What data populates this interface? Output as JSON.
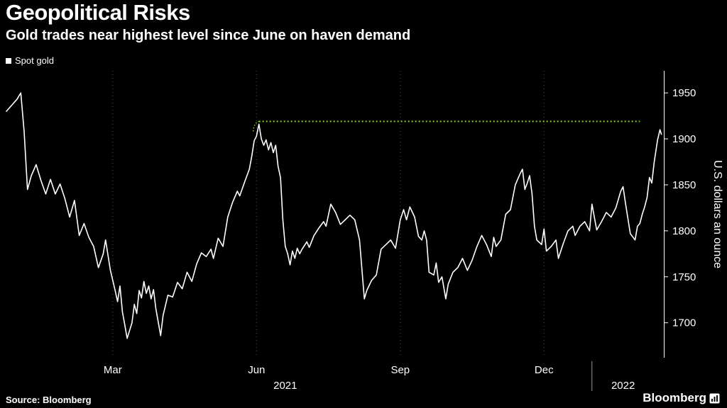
{
  "header": {
    "title": "Geopolitical Risks",
    "subtitle": "Gold trades near highest level since June on haven demand"
  },
  "legend": {
    "label": "Spot gold",
    "marker_color": "#ffffff"
  },
  "footer": {
    "source": "Source: Bloomberg",
    "brand": "Bloomberg"
  },
  "colors": {
    "background": "#000000",
    "line": "#ffffff",
    "accent_green": "#8bd125",
    "gridline": "#4d4d4d"
  },
  "chart_data": {
    "type": "line",
    "title": "Geopolitical Risks",
    "subtitle": "Gold trades near highest level since June on haven demand",
    "legend_position": "top-left",
    "grid": "vertical-dotted",
    "x_axis": {
      "unit": "months since Jan 2021",
      "range": [
        -0.25,
        13.5
      ],
      "gridlines": [
        {
          "pos": 2,
          "label": "Mar"
        },
        {
          "pos": 5,
          "label": "Jun"
        },
        {
          "pos": 8,
          "label": "Sep"
        },
        {
          "pos": 11,
          "label": "Dec"
        }
      ],
      "year_labels": [
        {
          "pos": 5.6,
          "label": "2021"
        },
        {
          "pos": 12.65,
          "label": "2022"
        }
      ],
      "year_divider_pos": 12
    },
    "y_axis": {
      "label": "U.S. dollars an ounce",
      "range": [
        1662,
        1974
      ],
      "ticks": [
        1700,
        1750,
        1800,
        1850,
        1900,
        1950
      ],
      "side": "right"
    },
    "annotation": {
      "type": "dotted_horizontal_line",
      "description": "highest level since June reference line",
      "color": "#8bd125",
      "value": 1919,
      "x_start": 5.05,
      "x_end": 13.0
    },
    "series": [
      {
        "name": "Spot gold",
        "color": "#ffffff",
        "points": [
          [
            -0.22,
            1930
          ],
          [
            0.0,
            1943
          ],
          [
            0.08,
            1950
          ],
          [
            0.15,
            1908
          ],
          [
            0.22,
            1845
          ],
          [
            0.3,
            1860
          ],
          [
            0.4,
            1872
          ],
          [
            0.5,
            1855
          ],
          [
            0.6,
            1840
          ],
          [
            0.7,
            1856
          ],
          [
            0.8,
            1840
          ],
          [
            0.9,
            1851
          ],
          [
            1.0,
            1835
          ],
          [
            1.1,
            1815
          ],
          [
            1.2,
            1833
          ],
          [
            1.3,
            1795
          ],
          [
            1.4,
            1808
          ],
          [
            1.5,
            1793
          ],
          [
            1.6,
            1783
          ],
          [
            1.7,
            1760
          ],
          [
            1.8,
            1775
          ],
          [
            1.85,
            1790
          ],
          [
            1.95,
            1757
          ],
          [
            2.05,
            1735
          ],
          [
            2.1,
            1723
          ],
          [
            2.15,
            1740
          ],
          [
            2.2,
            1712
          ],
          [
            2.25,
            1698
          ],
          [
            2.3,
            1683
          ],
          [
            2.4,
            1700
          ],
          [
            2.45,
            1720
          ],
          [
            2.5,
            1710
          ],
          [
            2.55,
            1735
          ],
          [
            2.6,
            1727
          ],
          [
            2.65,
            1745
          ],
          [
            2.7,
            1732
          ],
          [
            2.75,
            1740
          ],
          [
            2.8,
            1726
          ],
          [
            2.85,
            1736
          ],
          [
            2.9,
            1715
          ],
          [
            3.0,
            1686
          ],
          [
            3.05,
            1708
          ],
          [
            3.15,
            1730
          ],
          [
            3.25,
            1728
          ],
          [
            3.35,
            1744
          ],
          [
            3.45,
            1737
          ],
          [
            3.55,
            1755
          ],
          [
            3.65,
            1745
          ],
          [
            3.75,
            1764
          ],
          [
            3.85,
            1776
          ],
          [
            3.95,
            1772
          ],
          [
            4.05,
            1780
          ],
          [
            4.1,
            1770
          ],
          [
            4.2,
            1792
          ],
          [
            4.3,
            1783
          ],
          [
            4.4,
            1815
          ],
          [
            4.5,
            1831
          ],
          [
            4.6,
            1843
          ],
          [
            4.65,
            1838
          ],
          [
            4.75,
            1853
          ],
          [
            4.85,
            1867
          ],
          [
            4.9,
            1881
          ],
          [
            4.95,
            1898
          ],
          [
            5.0,
            1903
          ],
          [
            5.05,
            1916
          ],
          [
            5.1,
            1900
          ],
          [
            5.15,
            1893
          ],
          [
            5.2,
            1899
          ],
          [
            5.25,
            1888
          ],
          [
            5.3,
            1896
          ],
          [
            5.35,
            1885
          ],
          [
            5.4,
            1893
          ],
          [
            5.45,
            1870
          ],
          [
            5.5,
            1858
          ],
          [
            5.55,
            1812
          ],
          [
            5.6,
            1783
          ],
          [
            5.65,
            1775
          ],
          [
            5.7,
            1763
          ],
          [
            5.75,
            1778
          ],
          [
            5.8,
            1770
          ],
          [
            5.85,
            1781
          ],
          [
            5.9,
            1775
          ],
          [
            5.95,
            1780
          ],
          [
            6.05,
            1788
          ],
          [
            6.1,
            1782
          ],
          [
            6.2,
            1795
          ],
          [
            6.3,
            1803
          ],
          [
            6.4,
            1810
          ],
          [
            6.45,
            1805
          ],
          [
            6.55,
            1829
          ],
          [
            6.65,
            1820
          ],
          [
            6.75,
            1807
          ],
          [
            6.85,
            1812
          ],
          [
            6.95,
            1817
          ],
          [
            7.05,
            1812
          ],
          [
            7.15,
            1790
          ],
          [
            7.25,
            1726
          ],
          [
            7.3,
            1735
          ],
          [
            7.4,
            1746
          ],
          [
            7.5,
            1752
          ],
          [
            7.6,
            1780
          ],
          [
            7.7,
            1785
          ],
          [
            7.8,
            1790
          ],
          [
            7.9,
            1781
          ],
          [
            8.0,
            1812
          ],
          [
            8.07,
            1823
          ],
          [
            8.13,
            1812
          ],
          [
            8.2,
            1826
          ],
          [
            8.3,
            1815
          ],
          [
            8.38,
            1794
          ],
          [
            8.45,
            1790
          ],
          [
            8.5,
            1800
          ],
          [
            8.55,
            1790
          ],
          [
            8.6,
            1755
          ],
          [
            8.7,
            1752
          ],
          [
            8.75,
            1765
          ],
          [
            8.8,
            1744
          ],
          [
            8.87,
            1750
          ],
          [
            8.95,
            1726
          ],
          [
            9.0,
            1742
          ],
          [
            9.1,
            1755
          ],
          [
            9.2,
            1760
          ],
          [
            9.3,
            1770
          ],
          [
            9.4,
            1757
          ],
          [
            9.5,
            1768
          ],
          [
            9.6,
            1783
          ],
          [
            9.7,
            1795
          ],
          [
            9.8,
            1785
          ],
          [
            9.9,
            1772
          ],
          [
            9.95,
            1793
          ],
          [
            10.0,
            1783
          ],
          [
            10.1,
            1790
          ],
          [
            10.2,
            1818
          ],
          [
            10.3,
            1823
          ],
          [
            10.4,
            1850
          ],
          [
            10.5,
            1862
          ],
          [
            10.55,
            1867
          ],
          [
            10.6,
            1845
          ],
          [
            10.65,
            1852
          ],
          [
            10.7,
            1860
          ],
          [
            10.75,
            1840
          ],
          [
            10.8,
            1805
          ],
          [
            10.85,
            1790
          ],
          [
            10.95,
            1785
          ],
          [
            11.0,
            1802
          ],
          [
            11.05,
            1778
          ],
          [
            11.15,
            1783
          ],
          [
            11.25,
            1790
          ],
          [
            11.3,
            1770
          ],
          [
            11.4,
            1786
          ],
          [
            11.5,
            1800
          ],
          [
            11.6,
            1805
          ],
          [
            11.65,
            1795
          ],
          [
            11.75,
            1805
          ],
          [
            11.85,
            1810
          ],
          [
            11.95,
            1800
          ],
          [
            12.0,
            1829
          ],
          [
            12.05,
            1815
          ],
          [
            12.1,
            1801
          ],
          [
            12.2,
            1810
          ],
          [
            12.3,
            1820
          ],
          [
            12.4,
            1815
          ],
          [
            12.5,
            1825
          ],
          [
            12.6,
            1843
          ],
          [
            12.65,
            1848
          ],
          [
            12.7,
            1830
          ],
          [
            12.8,
            1797
          ],
          [
            12.9,
            1790
          ],
          [
            12.95,
            1805
          ],
          [
            13.0,
            1808
          ],
          [
            13.05,
            1818
          ],
          [
            13.1,
            1826
          ],
          [
            13.15,
            1836
          ],
          [
            13.2,
            1858
          ],
          [
            13.25,
            1852
          ],
          [
            13.3,
            1875
          ],
          [
            13.37,
            1899
          ],
          [
            13.42,
            1910
          ],
          [
            13.45,
            1905
          ]
        ]
      }
    ]
  }
}
